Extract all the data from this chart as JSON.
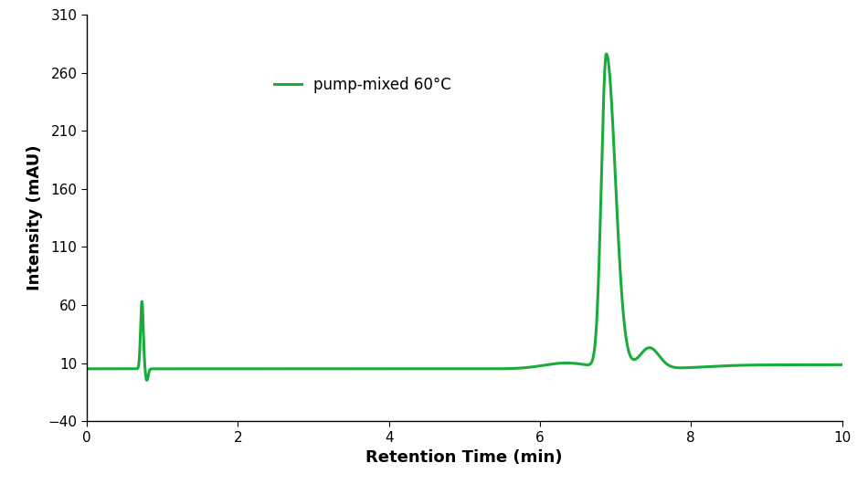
{
  "line_color": "#1aab3c",
  "line_width": 2.2,
  "xlim": [
    0,
    10
  ],
  "ylim": [
    -40,
    310
  ],
  "xticks": [
    0,
    2,
    4,
    6,
    8,
    10
  ],
  "yticks": [
    -40,
    10,
    60,
    110,
    160,
    210,
    260,
    310
  ],
  "xlabel": "Retention Time (min)",
  "ylabel": "Intensity (mAU)",
  "legend_label": "pump-mixed 60°C",
  "background_color": "#ffffff",
  "baseline_y": 5.0
}
